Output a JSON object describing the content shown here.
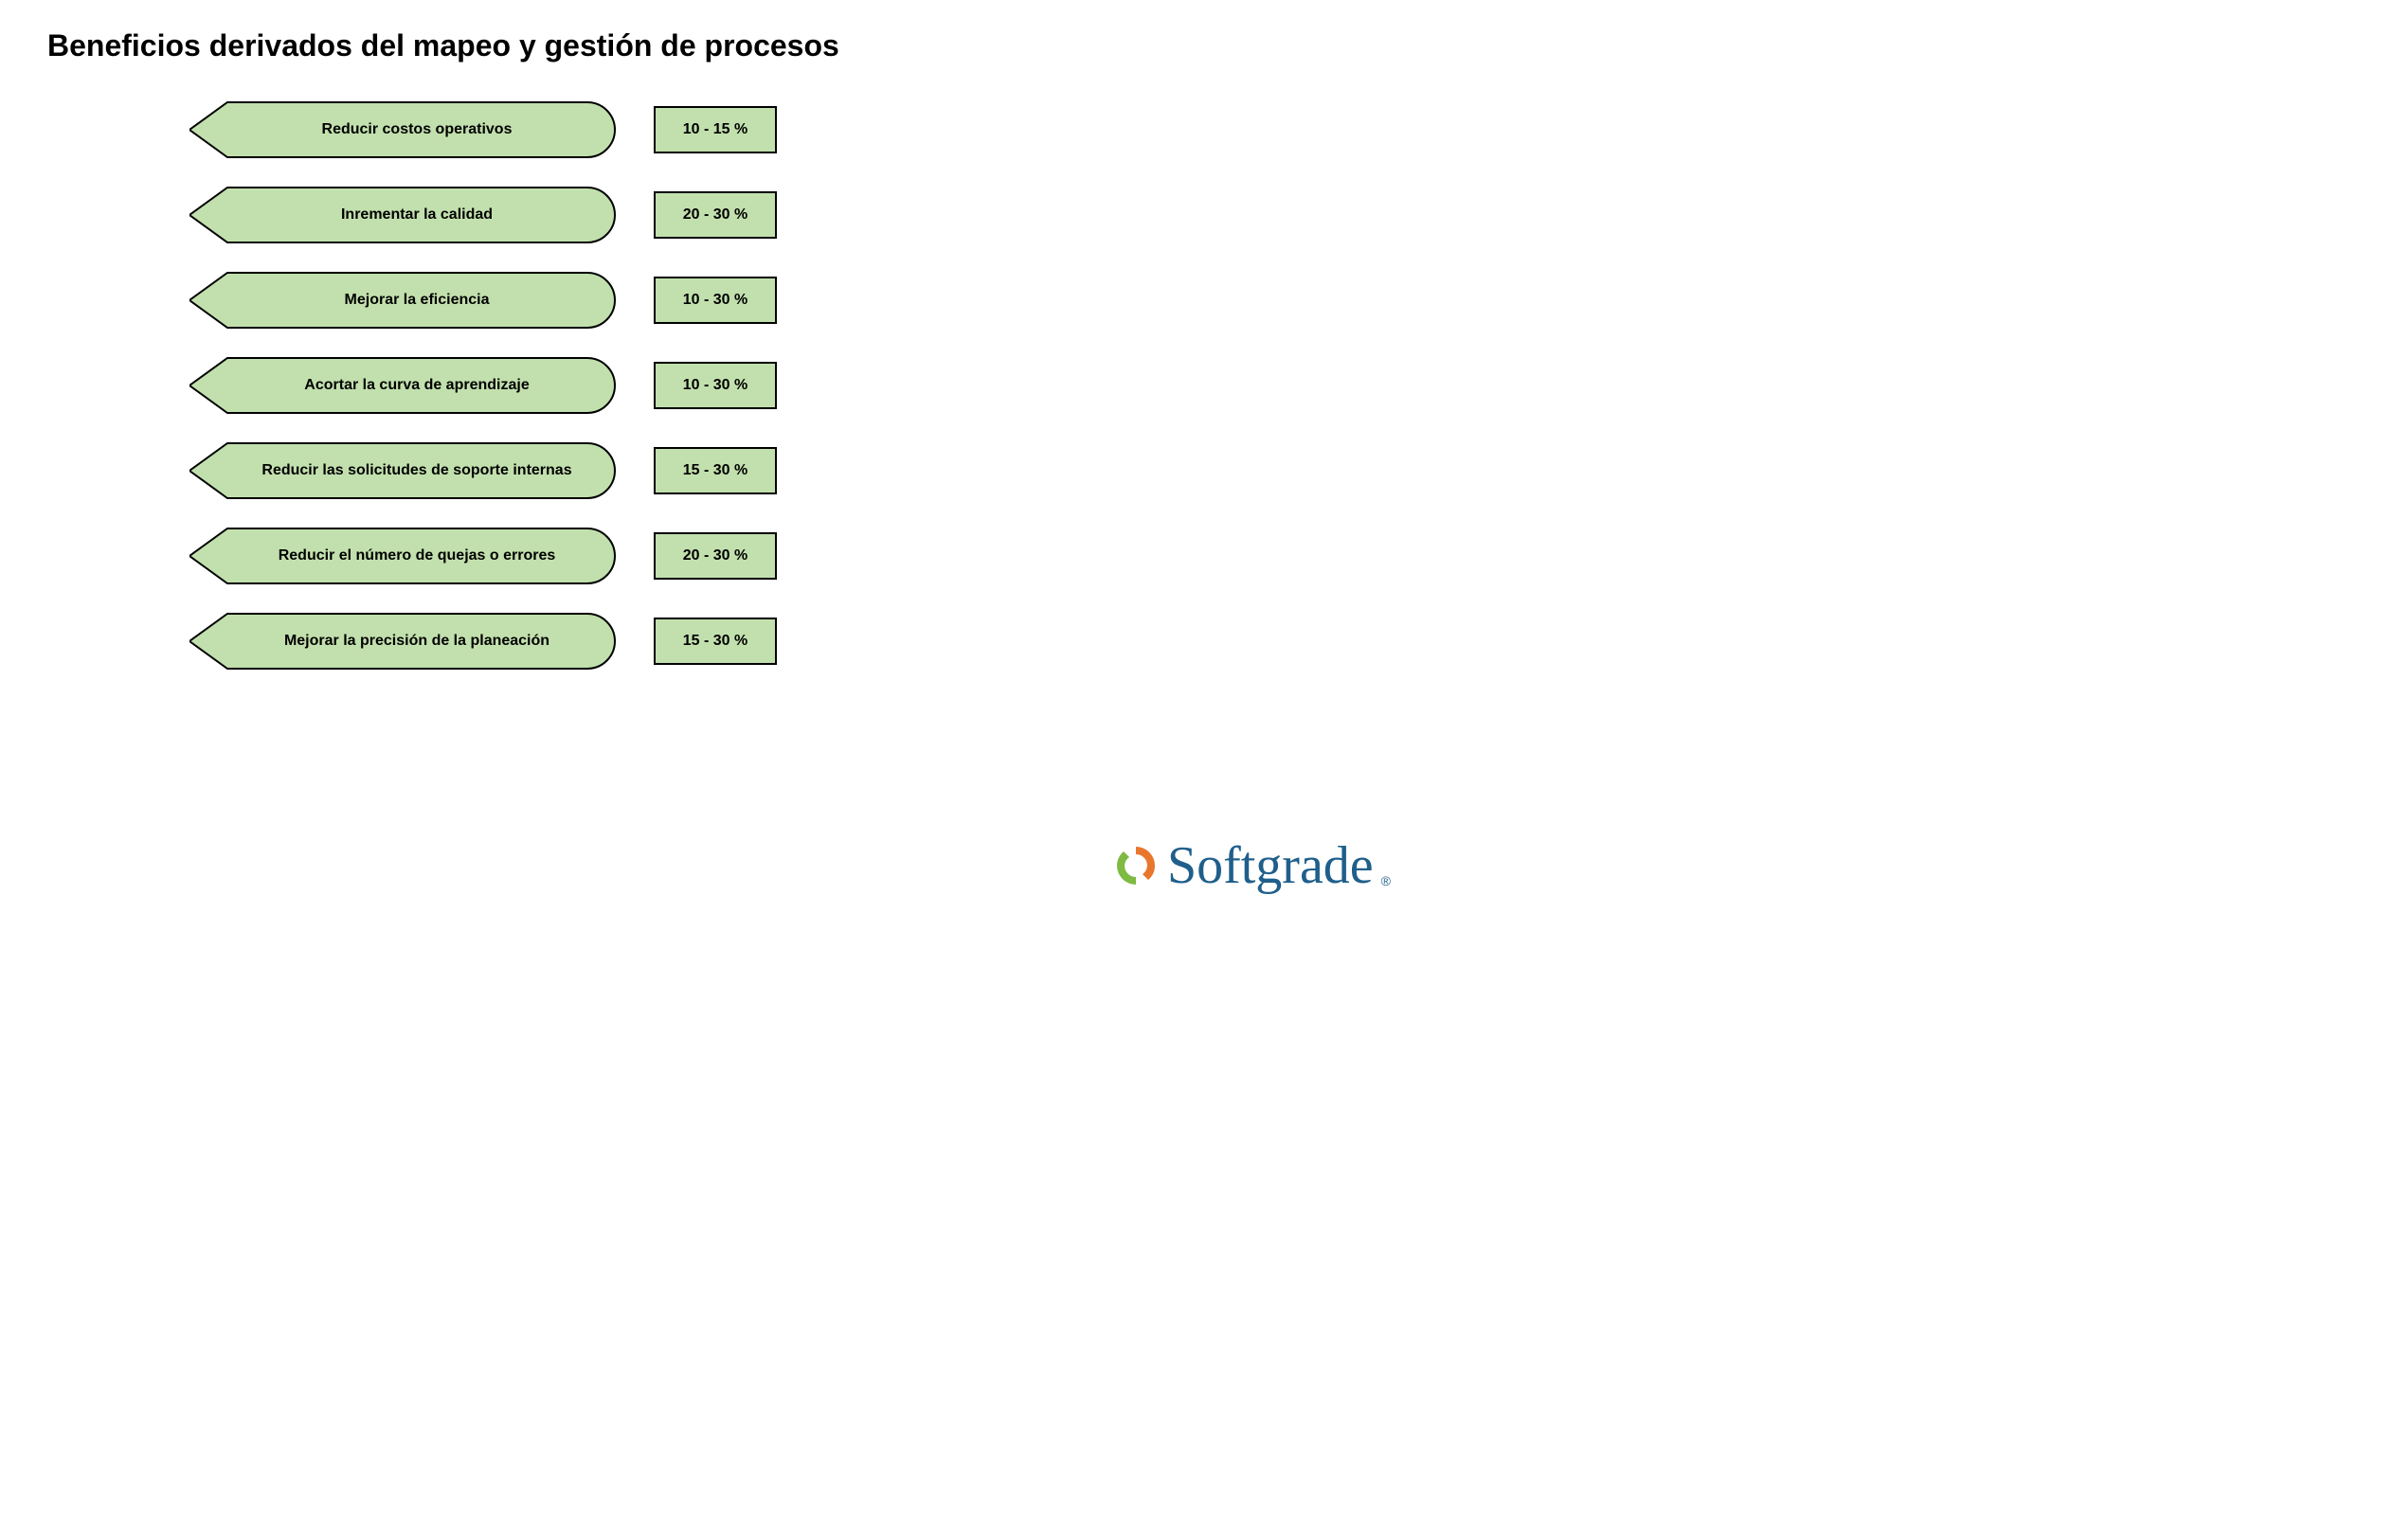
{
  "title": "Beneficios derivados del mapeo y gestión de procesos",
  "shape_fill": "#c2e0ad",
  "shape_stroke": "#000000",
  "shape_stroke_width": 2,
  "box_fill": "#c2e0ad",
  "box_stroke": "#000000",
  "box_stroke_width": 2,
  "text_color": "#000000",
  "title_fontsize": 32,
  "label_fontsize": 16,
  "value_fontsize": 16,
  "background_color": "#ffffff",
  "benefits": [
    {
      "label": "Reducir costos operativos",
      "value": "10 - 15 %"
    },
    {
      "label": "Inrementar la calidad",
      "value": "20 - 30 %"
    },
    {
      "label": "Mejorar la eficiencia",
      "value": "10 - 30 %"
    },
    {
      "label": "Acortar la curva de aprendizaje",
      "value": "10 - 30 %"
    },
    {
      "label": "Reducir las solicitudes de soporte internas",
      "value": "15 - 30 %"
    },
    {
      "label": "Reducir el número de quejas o errores",
      "value": "20 - 30 %"
    },
    {
      "label": "Mejorar la precisión de la planeación",
      "value": "15 - 30 %"
    }
  ],
  "logo": {
    "text": "Softgrade",
    "text_color": "#1f5f8b",
    "registered": "®",
    "circle_colors": {
      "top": "#e8762c",
      "bottom": "#7fba42"
    }
  }
}
